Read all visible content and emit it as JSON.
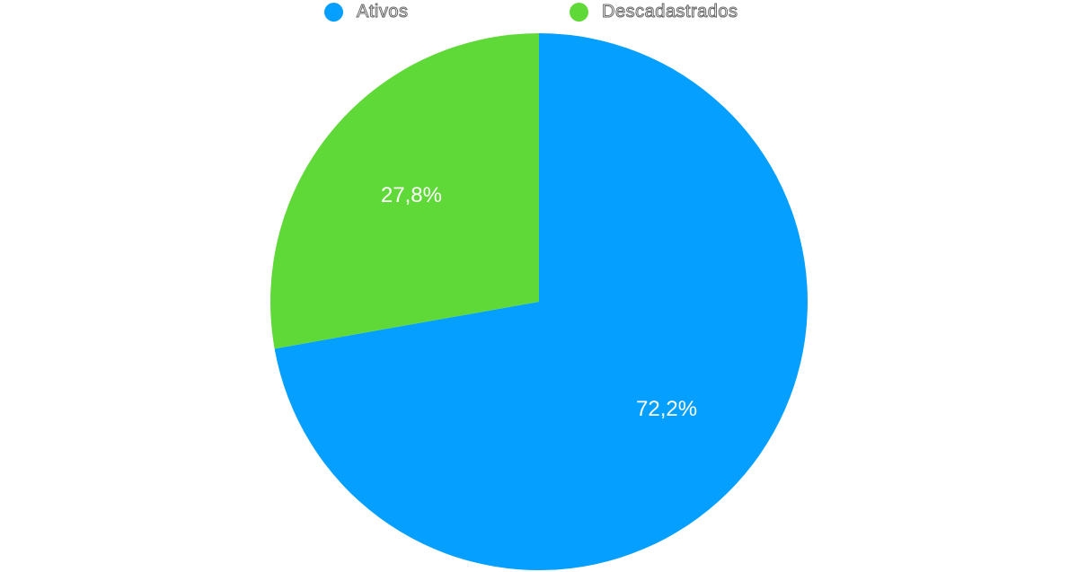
{
  "chart_data": {
    "type": "pie",
    "categories": [
      "Ativos",
      "Descadastrados"
    ],
    "values": [
      72.2,
      27.8
    ],
    "data_labels": [
      "72,2%",
      "27,8%"
    ],
    "colors": [
      "#05a0ff",
      "#5fd937"
    ],
    "legend_position": "top",
    "title": ""
  }
}
